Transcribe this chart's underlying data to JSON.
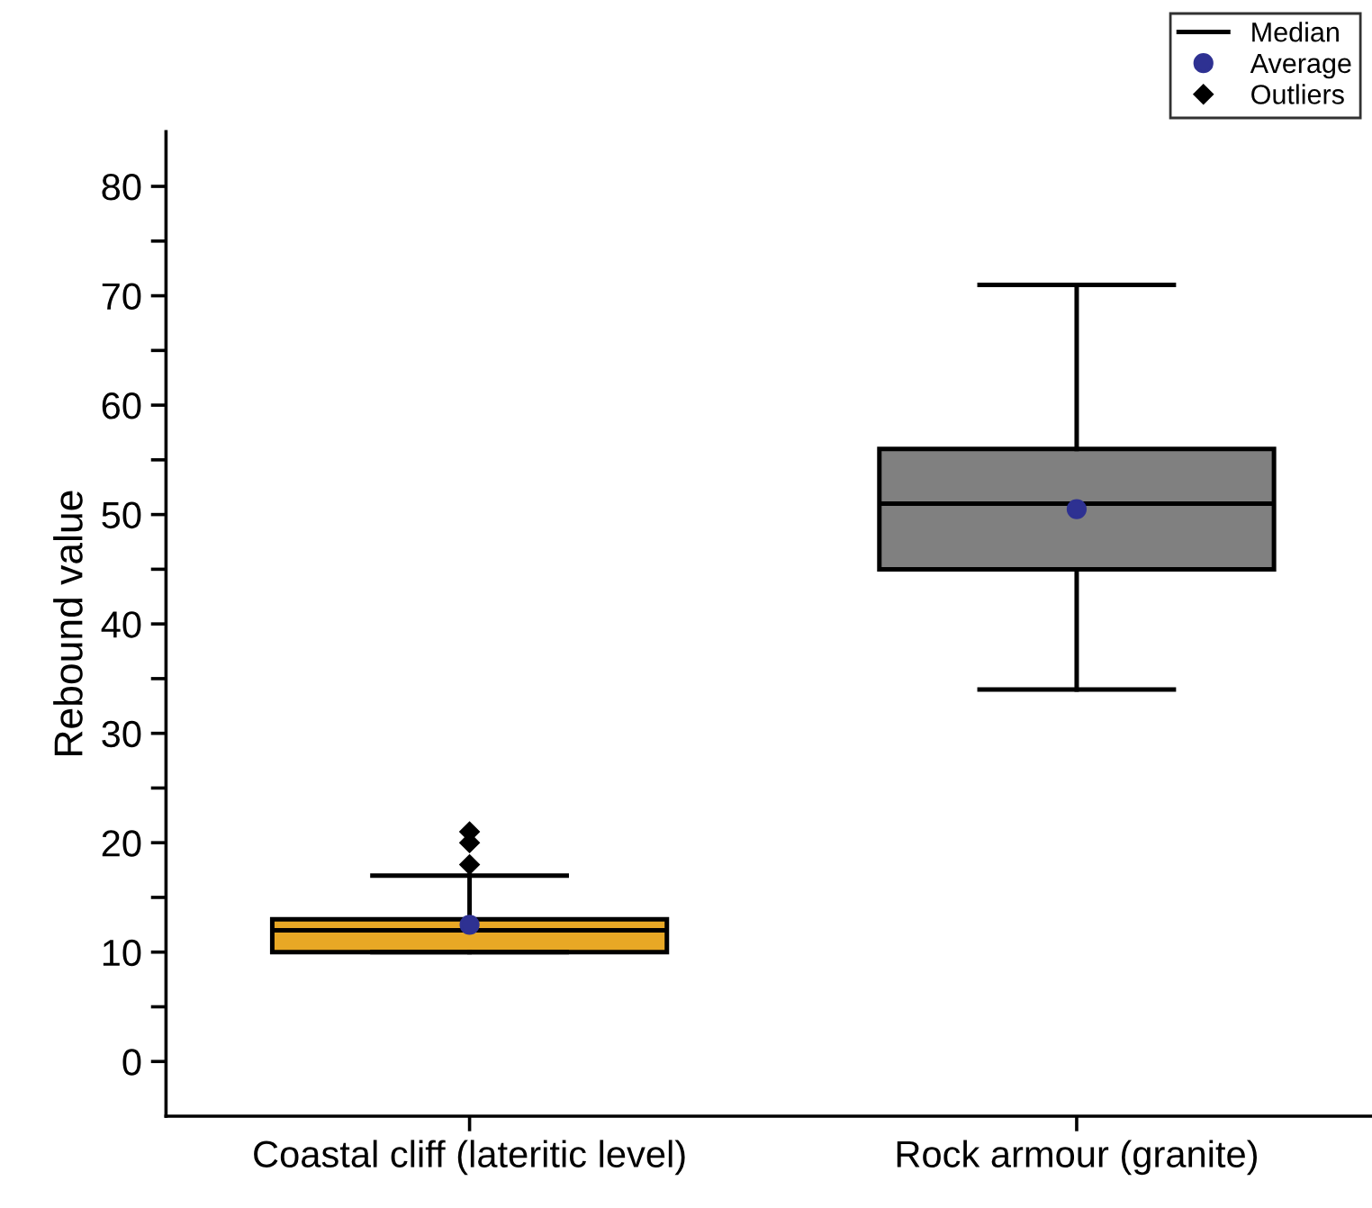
{
  "chart_data": {
    "type": "box",
    "ylabel": "Rebound value",
    "categories": [
      "Coastal cliff (lateritic level)",
      "Rock armour (granite)"
    ],
    "series": [
      {
        "name": "Median",
        "type": "box",
        "color": "#000000",
        "colors": [
          "#e8a825",
          "#808080"
        ],
        "boxes": [
          {
            "low": 10,
            "q1": 10,
            "median": 12,
            "q3": 13,
            "high": 17
          },
          {
            "low": 34,
            "q1": 45,
            "median": 51,
            "q3": 56,
            "high": 71
          }
        ]
      },
      {
        "name": "Average",
        "type": "scatter",
        "color": "#2e3192",
        "marker": "circle",
        "x": [
          "Coastal cliff (lateritic level)",
          "Rock armour (granite)"
        ],
        "values": [
          12.5,
          50.5
        ]
      },
      {
        "name": "Outliers",
        "type": "scatter",
        "color": "#000000",
        "marker": "diamond",
        "x": [
          "Coastal cliff (lateritic level)",
          "Coastal cliff (lateritic level)",
          "Coastal cliff (lateritic level)"
        ],
        "values": [
          18,
          20,
          21
        ]
      }
    ],
    "ylim": [
      -5,
      85
    ],
    "yticks": [
      0,
      {
        "value": 5,
        "label": null
      },
      10,
      {
        "value": 15,
        "label": null
      },
      20,
      {
        "value": 25,
        "label": null
      },
      30,
      {
        "value": 35,
        "label": null
      },
      40,
      {
        "value": 45,
        "label": null
      },
      50,
      {
        "value": 55,
        "label": null
      },
      60,
      {
        "value": 65,
        "label": null
      },
      70,
      {
        "value": 75,
        "label": null
      },
      80
    ],
    "grid": false,
    "legend": "top right"
  }
}
